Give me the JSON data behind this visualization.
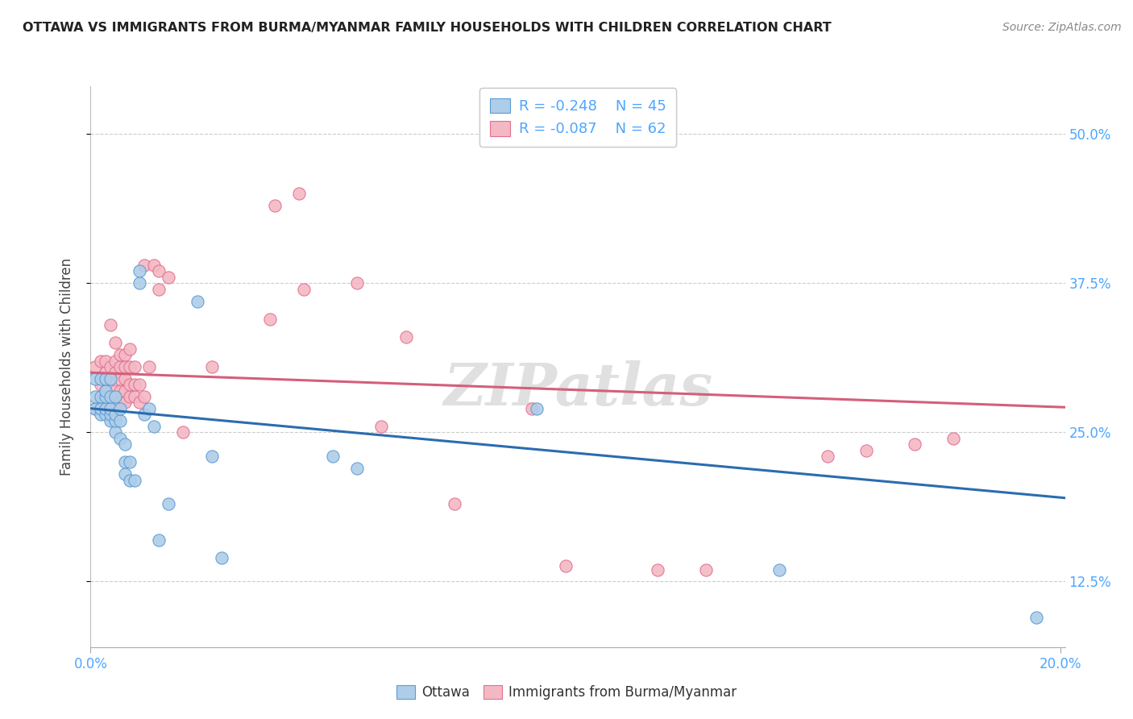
{
  "title": "OTTAWA VS IMMIGRANTS FROM BURMA/MYANMAR FAMILY HOUSEHOLDS WITH CHILDREN CORRELATION CHART",
  "source": "Source: ZipAtlas.com",
  "ylabel": "Family Households with Children",
  "legend_labels": [
    "Ottawa",
    "Immigrants from Burma/Myanmar"
  ],
  "blue_R": "-0.248",
  "blue_N": "45",
  "pink_R": "-0.087",
  "pink_N": "62",
  "blue_color": "#aecde8",
  "pink_color": "#f4b8c4",
  "blue_edge_color": "#5b9bd5",
  "pink_edge_color": "#e07090",
  "blue_line_color": "#2b6cb0",
  "pink_line_color": "#d45f7a",
  "grid_color": "#cccccc",
  "watermark": "ZIPatlas",
  "title_color": "#222222",
  "source_color": "#888888",
  "tick_color": "#4da6ff",
  "ylabel_color": "#444444",
  "xlim": [
    0.0,
    0.201
  ],
  "ylim": [
    0.07,
    0.54
  ],
  "xlabel_tick_vals": [
    0.0,
    0.2
  ],
  "xlabel_ticks": [
    "0.0%",
    "20.0%"
  ],
  "ylabel_tick_vals": [
    0.125,
    0.25,
    0.375,
    0.5
  ],
  "ylabel_ticks": [
    "12.5%",
    "25.0%",
    "37.5%",
    "50.0%"
  ],
  "blue_line_x0": 0.0,
  "blue_line_y0": 0.27,
  "blue_line_x1": 0.201,
  "blue_line_y1": 0.195,
  "pink_line_x0": 0.0,
  "pink_line_y0": 0.3,
  "pink_line_x1": 0.201,
  "pink_line_y1": 0.271,
  "blue_points_x": [
    0.001,
    0.001,
    0.001,
    0.002,
    0.002,
    0.002,
    0.002,
    0.003,
    0.003,
    0.003,
    0.003,
    0.003,
    0.004,
    0.004,
    0.004,
    0.004,
    0.004,
    0.005,
    0.005,
    0.005,
    0.005,
    0.006,
    0.006,
    0.006,
    0.007,
    0.007,
    0.007,
    0.008,
    0.008,
    0.009,
    0.01,
    0.01,
    0.011,
    0.012,
    0.013,
    0.014,
    0.016,
    0.022,
    0.025,
    0.027,
    0.05,
    0.055,
    0.092,
    0.142,
    0.195
  ],
  "blue_points_y": [
    0.27,
    0.28,
    0.295,
    0.265,
    0.27,
    0.28,
    0.295,
    0.265,
    0.27,
    0.28,
    0.285,
    0.295,
    0.26,
    0.265,
    0.27,
    0.28,
    0.295,
    0.25,
    0.26,
    0.265,
    0.28,
    0.245,
    0.26,
    0.27,
    0.215,
    0.225,
    0.24,
    0.21,
    0.225,
    0.21,
    0.375,
    0.385,
    0.265,
    0.27,
    0.255,
    0.16,
    0.19,
    0.36,
    0.23,
    0.145,
    0.23,
    0.22,
    0.27,
    0.135,
    0.095
  ],
  "pink_points_x": [
    0.001,
    0.001,
    0.002,
    0.002,
    0.002,
    0.003,
    0.003,
    0.003,
    0.003,
    0.004,
    0.004,
    0.004,
    0.004,
    0.005,
    0.005,
    0.005,
    0.005,
    0.005,
    0.006,
    0.006,
    0.006,
    0.006,
    0.006,
    0.007,
    0.007,
    0.007,
    0.007,
    0.007,
    0.008,
    0.008,
    0.008,
    0.008,
    0.009,
    0.009,
    0.009,
    0.01,
    0.01,
    0.011,
    0.011,
    0.012,
    0.013,
    0.014,
    0.014,
    0.016,
    0.019,
    0.025,
    0.037,
    0.043,
    0.06,
    0.075,
    0.091,
    0.098,
    0.117,
    0.127,
    0.152,
    0.16,
    0.17,
    0.178,
    0.038,
    0.044,
    0.055,
    0.065
  ],
  "pink_points_y": [
    0.27,
    0.305,
    0.275,
    0.29,
    0.31,
    0.275,
    0.285,
    0.3,
    0.31,
    0.28,
    0.295,
    0.305,
    0.34,
    0.275,
    0.285,
    0.3,
    0.31,
    0.325,
    0.275,
    0.285,
    0.295,
    0.305,
    0.315,
    0.275,
    0.285,
    0.295,
    0.305,
    0.315,
    0.28,
    0.29,
    0.305,
    0.32,
    0.28,
    0.29,
    0.305,
    0.275,
    0.29,
    0.28,
    0.39,
    0.305,
    0.39,
    0.37,
    0.385,
    0.38,
    0.25,
    0.305,
    0.345,
    0.45,
    0.255,
    0.19,
    0.27,
    0.138,
    0.135,
    0.135,
    0.23,
    0.235,
    0.24,
    0.245,
    0.44,
    0.37,
    0.375,
    0.33
  ]
}
